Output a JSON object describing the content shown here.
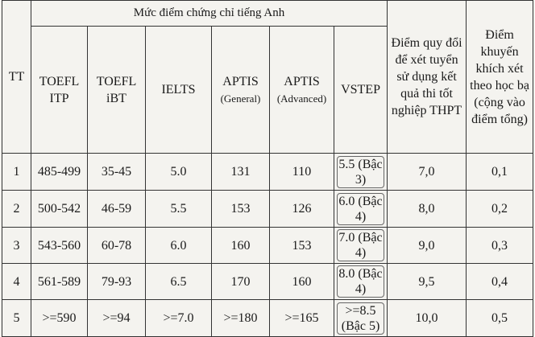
{
  "table": {
    "header": {
      "tt": "TT",
      "group": "Mức điểm chứng chỉ tiếng Anh",
      "columns": [
        {
          "name": "TOEFL ITP"
        },
        {
          "name": "TOEFL iBT"
        },
        {
          "name": "IELTS"
        },
        {
          "name": "APTIS",
          "sub": "(General)"
        },
        {
          "name": "APTIS",
          "sub": "(Advanced)"
        },
        {
          "name": "VSTEP"
        }
      ],
      "converted": "Điểm quy đổi để xét tuyển sử dụng kết quả thi tốt nghiệp THPT",
      "bonus": "Điểm khuyến khích xét theo học bạ (cộng vào điểm tổng)"
    },
    "rows": [
      [
        "1",
        "485-499",
        "35-45",
        "5.0",
        "131",
        "110",
        "5.5 (Bậc 3)",
        "7,0",
        "0,1"
      ],
      [
        "2",
        "500-542",
        "46-59",
        "5.5",
        "153",
        "126",
        "6.0 (Bậc 4)",
        "8,0",
        "0,2"
      ],
      [
        "3",
        "543-560",
        "60-78",
        "6.0",
        "160",
        "153",
        "7.0 (Bậc 4)",
        "9,0",
        "0,3"
      ],
      [
        "4",
        "561-589",
        "79-93",
        "6.5",
        "170",
        "160",
        "8.0 (Bậc 4)",
        "9,5",
        "0,4"
      ],
      [
        "5",
        ">=590",
        ">=94",
        ">=7.0",
        ">=180",
        ">=165",
        ">=8.5 (Bậc 5)",
        "10,0",
        "0,5"
      ]
    ]
  }
}
